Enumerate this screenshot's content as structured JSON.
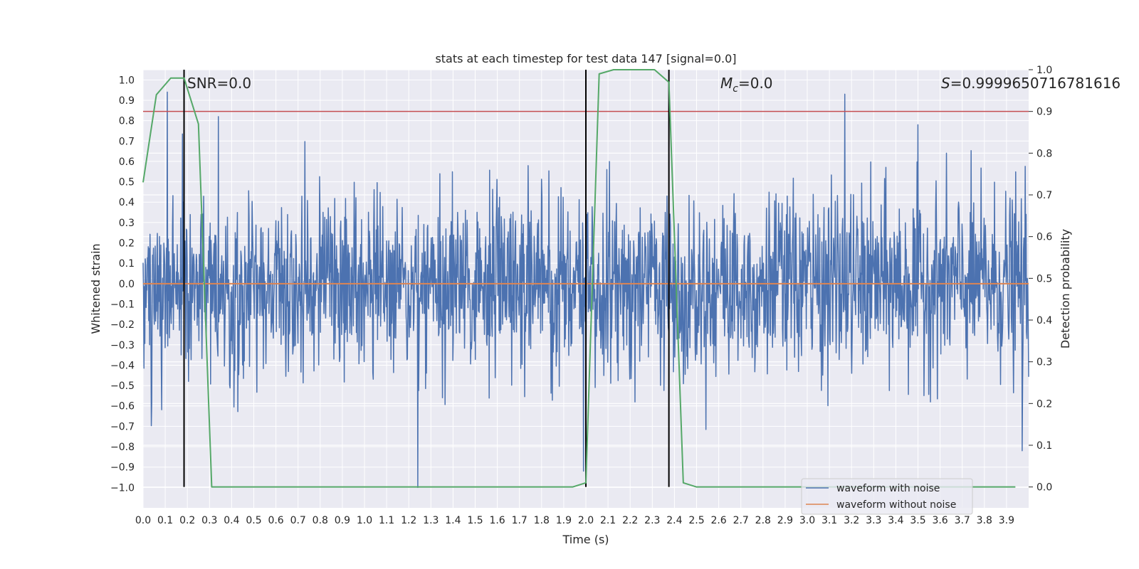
{
  "chart_data": {
    "type": "line",
    "title": "stats at each timestep for test data 147 [signal=0.0]",
    "xlabel": "Time (s)",
    "ylabel": "Whitened strain",
    "ylabel_right": "Detection probability",
    "xlim": [
      0.0,
      4.0
    ],
    "ylim": [
      -1.1,
      1.05
    ],
    "ylim_right": [
      -0.05,
      1.0
    ],
    "x_ticks": [
      0.0,
      0.1,
      0.2,
      0.3,
      0.4,
      0.5,
      0.6,
      0.7,
      0.8,
      0.9,
      1.0,
      1.1,
      1.2,
      1.3,
      1.4,
      1.5,
      1.6,
      1.7,
      1.8,
      1.9,
      2.0,
      2.1,
      2.2,
      2.3,
      2.4,
      2.5,
      2.6,
      2.7,
      2.8,
      2.9,
      3.0,
      3.1,
      3.2,
      3.3,
      3.4,
      3.5,
      3.6,
      3.7,
      3.8,
      3.9
    ],
    "x_tick_labels": [
      "0.0",
      "0.1",
      "0.2",
      "0.3",
      "0.4",
      "0.5",
      "0.6",
      "0.7",
      "0.8",
      "0.9",
      "1.0",
      "1.1",
      "1.2",
      "1.3",
      "1.4",
      "1.5",
      "1.6",
      "1.7",
      "1.8",
      "1.9",
      "2.0",
      "2.1",
      "2.2",
      "2.3",
      "2.4",
      "2.5",
      "2.6",
      "2.7",
      "2.8",
      "2.9",
      "3.0",
      "3.1",
      "3.2",
      "3.3",
      "3.4",
      "3.5",
      "3.6",
      "3.7",
      "3.8",
      "3.9"
    ],
    "y_ticks": [
      1.0,
      0.9,
      0.8,
      0.7,
      0.6,
      0.5,
      0.4,
      0.3,
      0.2,
      0.1,
      0.0,
      -0.1,
      -0.2,
      -0.3,
      -0.4,
      -0.5,
      -0.6,
      -0.7,
      -0.8,
      -0.9,
      -1.0
    ],
    "y_tick_labels": [
      "1.0",
      "0.9",
      "0.8",
      "0.7",
      "0.6",
      "0.5",
      "0.4",
      "0.3",
      "0.2",
      "0.1",
      "0.0",
      "−0.1",
      "−0.2",
      "−0.3",
      "−0.4",
      "−0.5",
      "−0.6",
      "−0.7",
      "−0.8",
      "−0.9",
      "−1.0"
    ],
    "y_ticks_right": [
      1.0,
      0.9,
      0.8,
      0.7,
      0.6,
      0.5,
      0.4,
      0.3,
      0.2,
      0.1,
      0.0
    ],
    "y_tick_labels_right": [
      "1.0",
      "0.9",
      "0.8",
      "0.7",
      "0.6",
      "0.5",
      "0.4",
      "0.3",
      "0.2",
      "0.1",
      "0.0"
    ],
    "grid": true,
    "legend_position": "bottom-right",
    "annotations": {
      "snr": "SNR=0.0",
      "mc_label": "M",
      "mc_sub": "c",
      "mc_value": "=0.0",
      "s_label": "S",
      "s_value": "=0.9999650716781616"
    },
    "threshold_right": 0.9,
    "vertical_markers": [
      0.185,
      2.0,
      2.375
    ],
    "series": [
      {
        "name": "waveform with noise",
        "color": "#4c72b0",
        "description": "Dense whitened strain noise, amplitude roughly between -1.0 and 0.95",
        "x_range": [
          0.0,
          4.0
        ],
        "n_samples": 2048,
        "value_range": [
          -1.0,
          0.95
        ],
        "notable_points": [
          {
            "x": 0.11,
            "y": 0.94
          },
          {
            "x": 0.34,
            "y": 0.82
          },
          {
            "x": 1.24,
            "y": -1.0
          },
          {
            "x": 1.99,
            "y": -0.92
          },
          {
            "x": 3.17,
            "y": 0.93
          },
          {
            "x": 3.5,
            "y": 0.78
          },
          {
            "x": 3.97,
            "y": -0.82
          }
        ]
      },
      {
        "name": "waveform without noise",
        "color": "#dd8452",
        "x": [
          0.0,
          4.0
        ],
        "y": [
          0.0,
          0.0
        ]
      },
      {
        "name": "detection probability",
        "color": "#55a868",
        "axis": "right",
        "x": [
          0.0,
          0.06,
          0.125,
          0.185,
          0.25,
          0.31,
          0.375,
          0.44,
          1.94,
          2.0,
          2.06,
          2.125,
          2.19,
          2.31,
          2.375,
          2.44,
          2.5,
          2.56,
          2.875,
          3.0,
          3.94
        ],
        "y": [
          0.73,
          0.94,
          0.98,
          0.98,
          0.87,
          0.0,
          0.0,
          0.0,
          0.0,
          0.01,
          0.99,
          1.0,
          1.0,
          1.0,
          0.97,
          0.01,
          0.0,
          0.0,
          0.0,
          0.0,
          0.0
        ]
      }
    ]
  },
  "colors": {
    "plot_bg": "#eaeaf2",
    "grid": "#ffffff",
    "noise": "#4c72b0",
    "clean": "#dd8452",
    "probability": "#55a868",
    "threshold": "#c44e52",
    "marker": "#000000"
  }
}
